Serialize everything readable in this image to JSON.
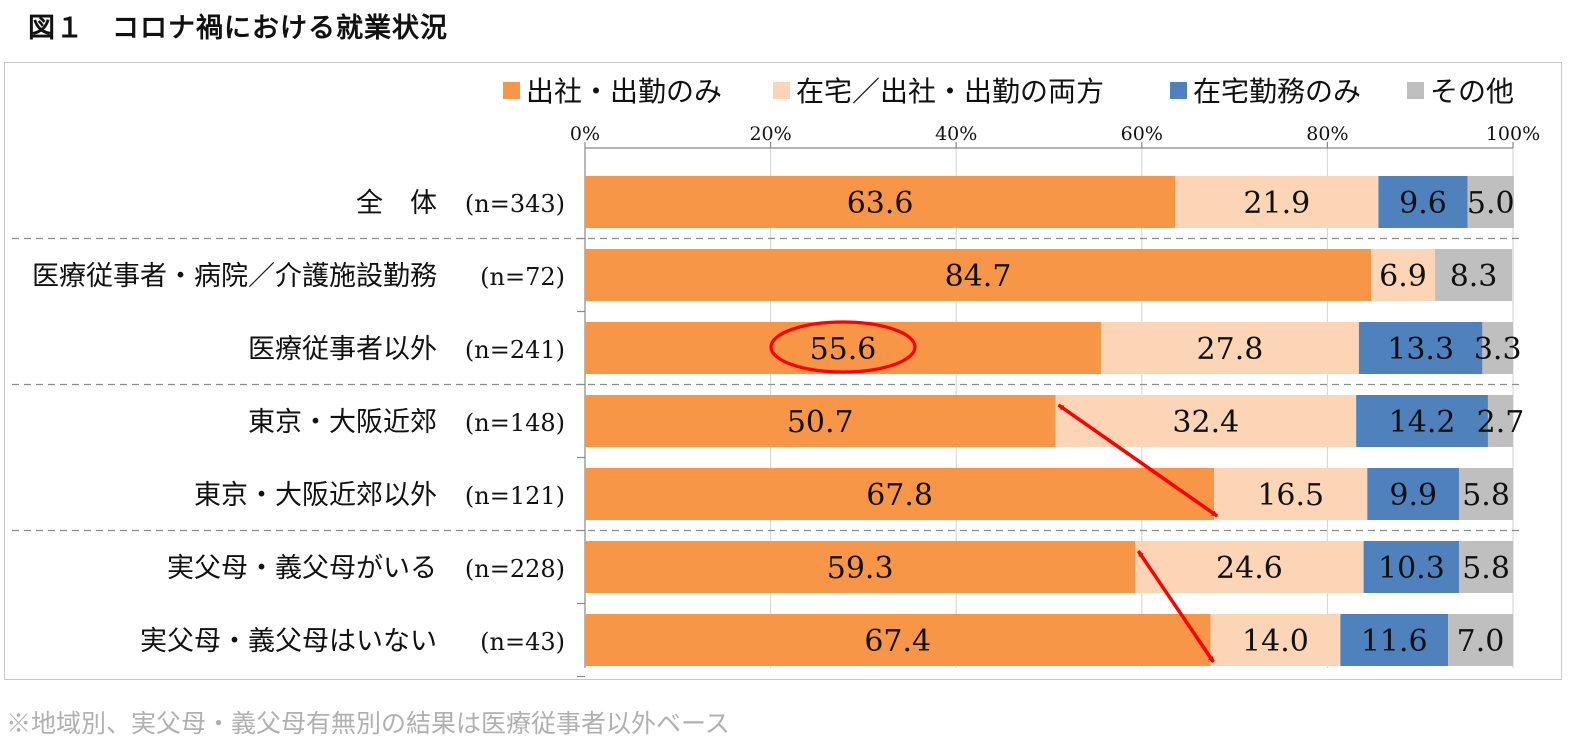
{
  "figure": {
    "title": "図１　コロナ禍における就業状況",
    "footnote": "※地域別、実父母・義父母有無別の結果は医療従事者以外ベース"
  },
  "colors": {
    "出社・出勤のみ": "#F79646",
    "在宅／出社・出勤の両方": "#FBD5B5",
    "在宅勤務のみ": "#4F81BD",
    "その他": "#BFBFBF",
    "annotation": "#FF0000"
  },
  "chart_data": {
    "type": "bar",
    "orientation": "horizontal",
    "stacked": true,
    "percent_axis": true,
    "xlim": [
      0,
      100
    ],
    "x_ticks": [
      "0%",
      "20%",
      "40%",
      "60%",
      "80%",
      "100%"
    ],
    "legend_position": "top",
    "grid": true,
    "categories": [
      {
        "label": "全　体",
        "n": "(n=343)"
      },
      {
        "label": "医療従事者・病院／介護施設勤務",
        "n": "(n=72)"
      },
      {
        "label": "医療従事者以外",
        "n": "(n=241)"
      },
      {
        "label": "東京・大阪近郊",
        "n": "(n=148)"
      },
      {
        "label": "東京・大阪近郊以外",
        "n": "(n=121)"
      },
      {
        "label": "実父母・義父母がいる",
        "n": "(n=228)"
      },
      {
        "label": "実父母・義父母はいない",
        "n": "(n=43)"
      }
    ],
    "series": [
      {
        "name": "出社・出勤のみ",
        "values": [
          63.6,
          84.7,
          55.6,
          50.7,
          67.8,
          59.3,
          67.4
        ]
      },
      {
        "name": "在宅／出社・出勤の両方",
        "values": [
          21.9,
          6.9,
          27.8,
          32.4,
          16.5,
          24.6,
          14.0
        ]
      },
      {
        "name": "在宅勤務のみ",
        "values": [
          9.6,
          0,
          13.3,
          14.2,
          9.9,
          10.3,
          11.6
        ]
      },
      {
        "name": "その他",
        "values": [
          5.0,
          8.3,
          3.3,
          2.7,
          5.8,
          5.8,
          7.0
        ]
      }
    ],
    "data_labels": [
      [
        "63.6",
        "21.9",
        "9.6",
        "5.0"
      ],
      [
        "84.7",
        "6.9",
        "",
        "8.3"
      ],
      [
        "55.6",
        "27.8",
        "13.3",
        "3.3"
      ],
      [
        "50.7",
        "32.4",
        "14.2",
        "2.7"
      ],
      [
        "67.8",
        "16.5",
        "9.9",
        "5.8"
      ],
      [
        "59.3",
        "24.6",
        "10.3",
        "5.8"
      ],
      [
        "67.4",
        "14.0",
        "11.6",
        "7.0"
      ]
    ],
    "group_separators_after": [
      0,
      2,
      4
    ],
    "annotations": {
      "circled_value": {
        "row": 2,
        "series": 0
      },
      "arrows": [
        {
          "from": {
            "row": 3,
            "value": 50.7
          },
          "to": {
            "row": 4,
            "value": 67.8
          }
        },
        {
          "from": {
            "row": 5,
            "value": 59.3
          },
          "to": {
            "row": 6,
            "value": 67.4
          }
        }
      ]
    }
  }
}
